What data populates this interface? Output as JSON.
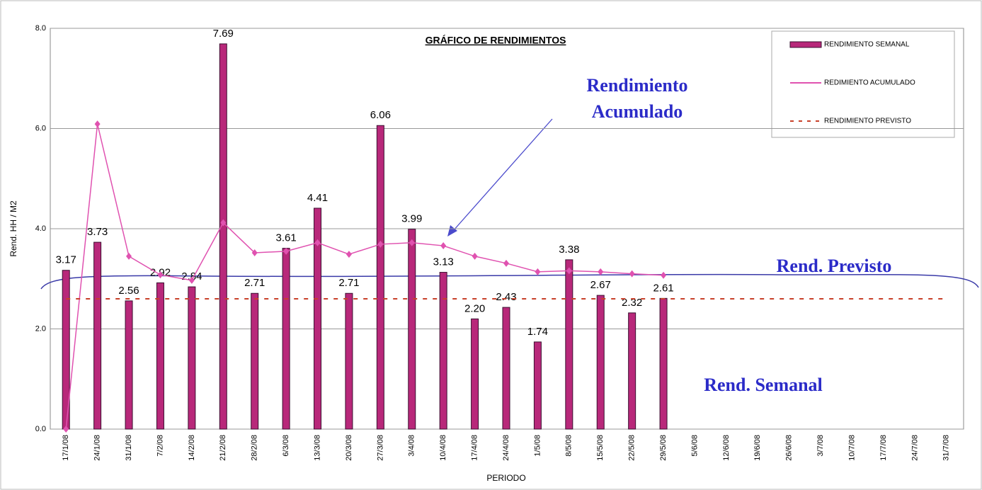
{
  "chart_data": {
    "type": "bar_line",
    "title": "GRÁFICO DE RENDIMIENTOS",
    "y_label": "Rend. HH / M2",
    "x_label": "PERIODO",
    "annotations": [
      "Rendimiento",
      "Acumulado",
      "Rend. Previsto",
      "Rend. Semanal"
    ],
    "categories": [
      "17/1/08",
      "24/1/08",
      "31/1/08",
      "7/2/08",
      "14/2/08",
      "21/2/08",
      "28/2/08",
      "6/3/08",
      "13/3/08",
      "20/3/08",
      "27/3/08",
      "3/4/08",
      "10/4/08",
      "17/4/08",
      "24/4/08",
      "1/5/08",
      "8/5/08",
      "15/5/08",
      "22/5/08",
      "29/5/08",
      "5/6/08",
      "12/6/08",
      "19/6/08",
      "26/6/08",
      "3/7/08",
      "10/7/08",
      "17/7/08",
      "24/7/08",
      "31/7/08"
    ],
    "series": [
      {
        "name": "RENDIMIENTO SEMANAL",
        "kind": "bar",
        "color": "#b8287a",
        "values": [
          3.17,
          3.73,
          2.56,
          2.92,
          2.84,
          7.69,
          2.71,
          3.61,
          4.41,
          2.71,
          6.06,
          3.99,
          3.13,
          2.2,
          2.43,
          1.74,
          3.38,
          2.67,
          2.32,
          2.61,
          null,
          null,
          null,
          null,
          null,
          null,
          null,
          null,
          null
        ],
        "value_labels": [
          "3.17",
          "3.73",
          "2.56",
          "2.92",
          "2.84",
          "7.69",
          "2.71",
          "3.61",
          "4.41",
          "2.71",
          "6.06",
          "3.99",
          "3.13",
          "2.20",
          "2.43",
          "1.74",
          "3.38",
          "2.67",
          "2.32",
          "2.61",
          null,
          null,
          null,
          null,
          null,
          null,
          null,
          null,
          null
        ]
      },
      {
        "name": "REDIMIENTO ACUMULADO",
        "kind": "line",
        "color": "#e052b0",
        "values": [
          0,
          6.09,
          3.45,
          3.08,
          2.97,
          4.12,
          3.52,
          3.55,
          3.72,
          3.49,
          3.69,
          3.72,
          3.66,
          3.45,
          3.31,
          3.14,
          3.16,
          3.14,
          3.1,
          3.07,
          null,
          null,
          null,
          null,
          null,
          null,
          null,
          null,
          null
        ]
      },
      {
        "name": "RENDIMIENTO PREVISTO",
        "kind": "dashed",
        "color": "#c8402a",
        "values": [
          2.6,
          2.6,
          2.6,
          2.6,
          2.6,
          2.6,
          2.6,
          2.6,
          2.6,
          2.6,
          2.6,
          2.6,
          2.6,
          2.6,
          2.6,
          2.6,
          2.6,
          2.6,
          2.6,
          2.6,
          2.6,
          2.6,
          2.6,
          2.6,
          2.6,
          2.6,
          2.6,
          2.6,
          2.6
        ]
      }
    ],
    "ylim": [
      0,
      8
    ],
    "yticks": [
      {
        "value": 0,
        "label": "0.0"
      },
      {
        "value": 2,
        "label": "2.0"
      },
      {
        "value": 4,
        "label": "4.0"
      },
      {
        "value": 6,
        "label": "6.0"
      },
      {
        "value": 8,
        "label": "8.0"
      }
    ],
    "grid": true
  }
}
